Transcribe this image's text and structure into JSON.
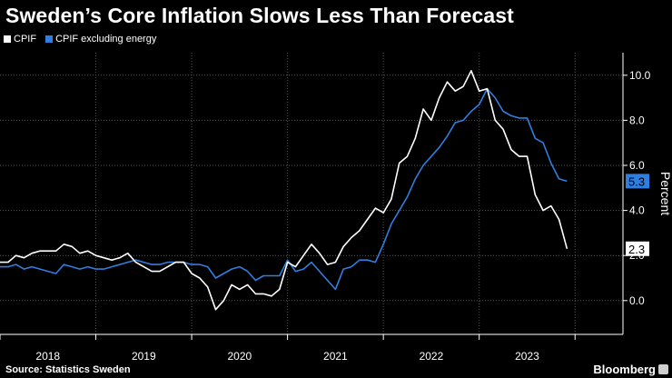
{
  "title": "Sweden’s Core Inflation Slows Less Than Forecast",
  "source": "Source: Statistics Sweden",
  "brand": "Bloomberg",
  "colors": {
    "background": "#000000",
    "cpif": "#ffffff",
    "cpif_ex_energy": "#2f7fe0",
    "grid": "#555555"
  },
  "chart_data": {
    "type": "line",
    "title": "Sweden’s Core Inflation Slows Less Than Forecast",
    "xlabel": "",
    "ylabel": "Percent",
    "ylim": [
      -1.5,
      11.0
    ],
    "yticks": [
      0.0,
      2.0,
      4.0,
      6.0,
      8.0,
      10.0
    ],
    "ytick_labels": [
      "0.0",
      "2.0",
      "4.0",
      "6.0",
      "8.0",
      "10.0"
    ],
    "xlim": [
      2017.5,
      2024.0
    ],
    "xticks": [
      2018,
      2019,
      2020,
      2021,
      2022,
      2023
    ],
    "xtick_labels": [
      "2018",
      "2019",
      "2020",
      "2021",
      "2022",
      "2023"
    ],
    "grid": true,
    "legend": "top-left",
    "end_labels": {
      "cpif": "2.3",
      "cpif_ex_energy": "5.3"
    },
    "series": [
      {
        "name": "CPIF",
        "x_start": 2017.5,
        "x_step": 0.0833333,
        "values": [
          1.7,
          1.7,
          2.0,
          1.9,
          2.1,
          2.2,
          2.2,
          2.2,
          2.5,
          2.4,
          2.1,
          2.2,
          2.0,
          1.9,
          1.8,
          1.9,
          2.1,
          1.7,
          1.5,
          1.3,
          1.3,
          1.5,
          1.7,
          1.7,
          1.2,
          1.0,
          0.6,
          -0.4,
          0.0,
          0.7,
          0.5,
          0.7,
          0.3,
          0.3,
          0.2,
          0.5,
          1.7,
          1.5,
          2.0,
          2.5,
          2.1,
          1.6,
          1.7,
          2.4,
          2.8,
          3.1,
          3.6,
          4.1,
          3.9,
          4.5,
          6.1,
          6.4,
          7.2,
          8.5,
          8.0,
          9.0,
          9.7,
          9.3,
          9.5,
          10.2,
          9.3,
          9.4,
          8.0,
          7.6,
          6.7,
          6.4,
          6.4,
          4.7,
          4.0,
          4.2,
          3.6,
          2.3
        ]
      },
      {
        "name": "CPIF excluding energy",
        "x_start": 2017.5,
        "x_step": 0.0833333,
        "values": [
          1.5,
          1.5,
          1.6,
          1.4,
          1.5,
          1.4,
          1.3,
          1.2,
          1.6,
          1.5,
          1.4,
          1.5,
          1.4,
          1.4,
          1.5,
          1.6,
          1.7,
          1.8,
          1.7,
          1.6,
          1.6,
          1.7,
          1.7,
          1.7,
          1.6,
          1.6,
          1.5,
          1.0,
          1.2,
          1.4,
          1.5,
          1.3,
          0.9,
          1.1,
          1.1,
          1.1,
          1.8,
          1.3,
          1.4,
          1.7,
          1.3,
          0.9,
          0.5,
          1.4,
          1.5,
          1.8,
          1.8,
          1.7,
          2.5,
          3.4,
          4.0,
          4.6,
          5.4,
          6.0,
          6.4,
          6.8,
          7.3,
          7.9,
          8.0,
          8.4,
          8.7,
          9.4,
          9.0,
          8.4,
          8.2,
          8.1,
          8.1,
          7.2,
          7.0,
          6.1,
          5.4,
          5.3
        ]
      }
    ]
  },
  "legend": {
    "items": [
      {
        "label": "CPIF",
        "color": "#ffffff"
      },
      {
        "label": "CPIF excluding energy",
        "color": "#2f7fe0"
      }
    ]
  }
}
